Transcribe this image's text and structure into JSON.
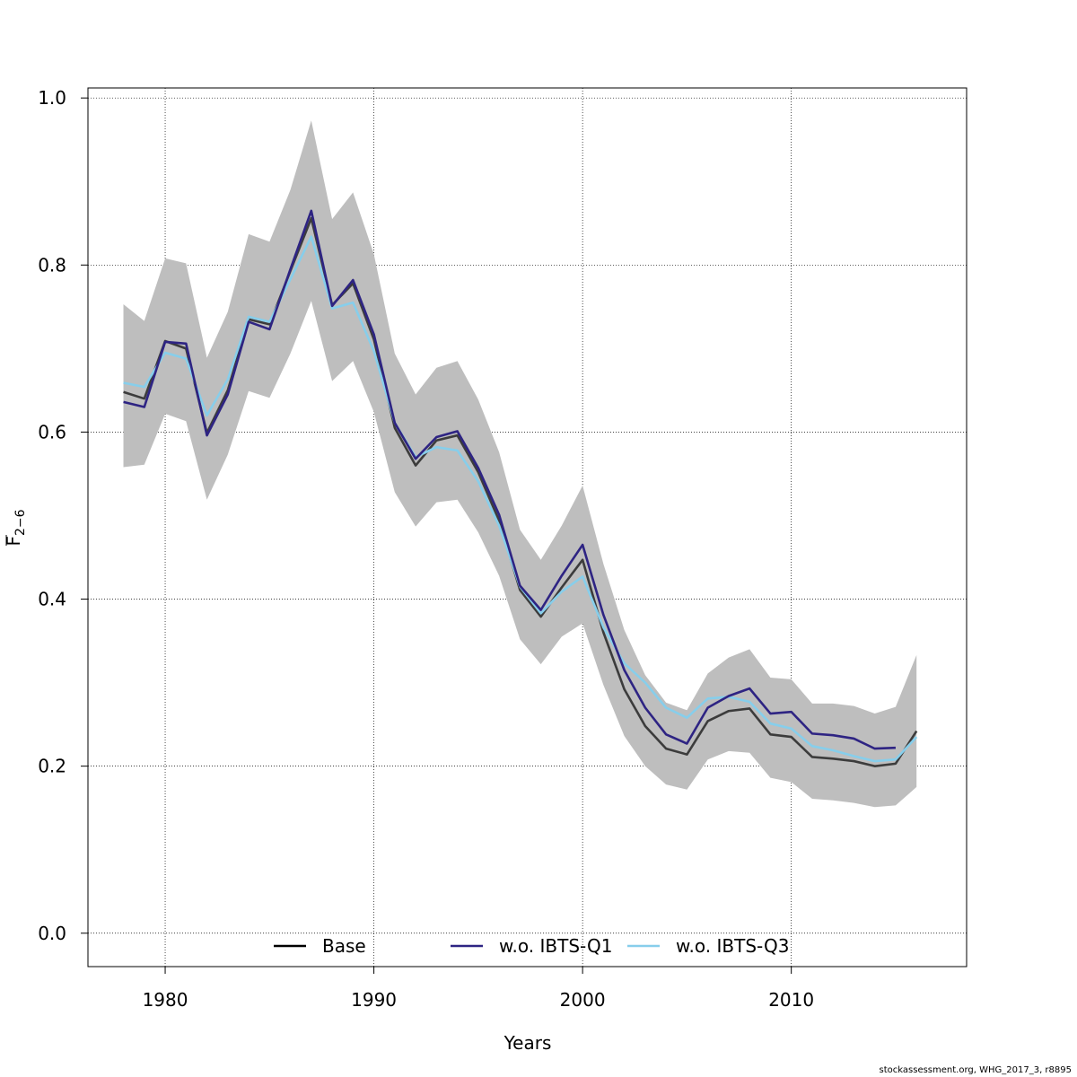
{
  "chart_data": {
    "type": "line",
    "xlabel": "Years",
    "ylabel": {
      "base": "F",
      "sub": "2−6"
    },
    "xlim": [
      1976.3,
      2018.4
    ],
    "ylim": [
      -0.04,
      1.012
    ],
    "x_ticks": [
      1980,
      1990,
      2000,
      2010
    ],
    "x_tick_labels": [
      "1980",
      "1990",
      "2000",
      "2010"
    ],
    "y_ticks": [
      0.0,
      0.2,
      0.4,
      0.6,
      0.8,
      1.0
    ],
    "y_tick_labels": [
      "0.0",
      "0.2",
      "0.4",
      "0.6",
      "0.8",
      "1.0"
    ],
    "grid": true,
    "legend_position": "bottom",
    "confidence_band": {
      "x": [
        1978,
        1979,
        1980,
        1981,
        1982,
        1983,
        1984,
        1985,
        1986,
        1987,
        1988,
        1989,
        1990,
        1991,
        1992,
        1993,
        1994,
        1995,
        1996,
        1997,
        1998,
        1999,
        2000,
        2001,
        2002,
        2003,
        2004,
        2005,
        2006,
        2007,
        2008,
        2009,
        2010,
        2011,
        2012,
        2013,
        2014,
        2015,
        2016
      ],
      "upper": [
        0.753,
        0.733,
        0.808,
        0.802,
        0.689,
        0.744,
        0.837,
        0.828,
        0.89,
        0.973,
        0.855,
        0.887,
        0.813,
        0.694,
        0.645,
        0.677,
        0.685,
        0.639,
        0.576,
        0.483,
        0.447,
        0.488,
        0.536,
        0.442,
        0.363,
        0.309,
        0.276,
        0.267,
        0.311,
        0.33,
        0.34,
        0.306,
        0.304,
        0.275,
        0.275,
        0.272,
        0.263,
        0.271,
        0.333
      ],
      "lower": [
        0.558,
        0.561,
        0.622,
        0.613,
        0.519,
        0.573,
        0.649,
        0.641,
        0.694,
        0.757,
        0.661,
        0.685,
        0.624,
        0.528,
        0.487,
        0.516,
        0.519,
        0.48,
        0.428,
        0.352,
        0.322,
        0.355,
        0.371,
        0.297,
        0.236,
        0.2,
        0.178,
        0.172,
        0.208,
        0.218,
        0.216,
        0.186,
        0.181,
        0.161,
        0.159,
        0.156,
        0.151,
        0.153,
        0.175
      ]
    },
    "series": [
      {
        "name": "Base",
        "color": "#3c3c3c",
        "x": [
          1978,
          1979,
          1980,
          1981,
          1982,
          1983,
          1984,
          1985,
          1986,
          1987,
          1988,
          1989,
          1990,
          1991,
          1992,
          1993,
          1994,
          1995,
          1996,
          1997,
          1998,
          1999,
          2000,
          2001,
          2002,
          2003,
          2004,
          2005,
          2006,
          2007,
          2008,
          2009,
          2010,
          2011,
          2012,
          2013,
          2014,
          2015,
          2016
        ],
        "values": [
          0.648,
          0.64,
          0.709,
          0.7,
          0.599,
          0.65,
          0.735,
          0.729,
          0.793,
          0.856,
          0.752,
          0.778,
          0.711,
          0.605,
          0.56,
          0.59,
          0.596,
          0.552,
          0.494,
          0.411,
          0.379,
          0.414,
          0.447,
          0.36,
          0.292,
          0.248,
          0.221,
          0.214,
          0.254,
          0.266,
          0.269,
          0.238,
          0.235,
          0.211,
          0.209,
          0.206,
          0.2,
          0.203,
          0.242
        ]
      },
      {
        "name": "w.o. IBTS-Q1",
        "color": "#2e2483",
        "x": [
          1978,
          1979,
          1980,
          1981,
          1982,
          1983,
          1984,
          1985,
          1986,
          1987,
          1988,
          1989,
          1990,
          1991,
          1992,
          1993,
          1994,
          1995,
          1996,
          1997,
          1998,
          1999,
          2000,
          2001,
          2002,
          2003,
          2004,
          2005,
          2006,
          2007,
          2008,
          2009,
          2010,
          2011,
          2012,
          2013,
          2014,
          2015
        ],
        "values": [
          0.636,
          0.63,
          0.708,
          0.706,
          0.596,
          0.645,
          0.732,
          0.723,
          0.795,
          0.865,
          0.751,
          0.782,
          0.717,
          0.611,
          0.568,
          0.594,
          0.601,
          0.557,
          0.501,
          0.416,
          0.387,
          0.428,
          0.465,
          0.381,
          0.315,
          0.27,
          0.238,
          0.227,
          0.27,
          0.284,
          0.293,
          0.263,
          0.265,
          0.239,
          0.237,
          0.233,
          0.221,
          0.222
        ]
      },
      {
        "name": "w.o. IBTS-Q3",
        "color": "#87ceeb",
        "x": [
          1978,
          1979,
          1980,
          1981,
          1982,
          1983,
          1984,
          1985,
          1986,
          1987,
          1988,
          1989,
          1990,
          1991,
          1992,
          1993,
          1994,
          1995,
          1996,
          1997,
          1998,
          1999,
          2000,
          2001,
          2002,
          2003,
          2004,
          2005,
          2006,
          2007,
          2008,
          2009,
          2010,
          2011,
          2012,
          2013,
          2014,
          2015,
          2016
        ],
        "values": [
          0.659,
          0.654,
          0.695,
          0.688,
          0.62,
          0.663,
          0.738,
          0.732,
          0.783,
          0.834,
          0.748,
          0.755,
          0.697,
          0.611,
          0.57,
          0.582,
          0.578,
          0.541,
          0.488,
          0.415,
          0.383,
          0.409,
          0.427,
          0.366,
          0.323,
          0.3,
          0.27,
          0.258,
          0.281,
          0.283,
          0.277,
          0.251,
          0.245,
          0.224,
          0.219,
          0.212,
          0.206,
          0.208,
          0.235
        ]
      }
    ],
    "band_color": "#bebebe"
  },
  "footer": "stockassessment.org, WHG_2017_3, r8895"
}
